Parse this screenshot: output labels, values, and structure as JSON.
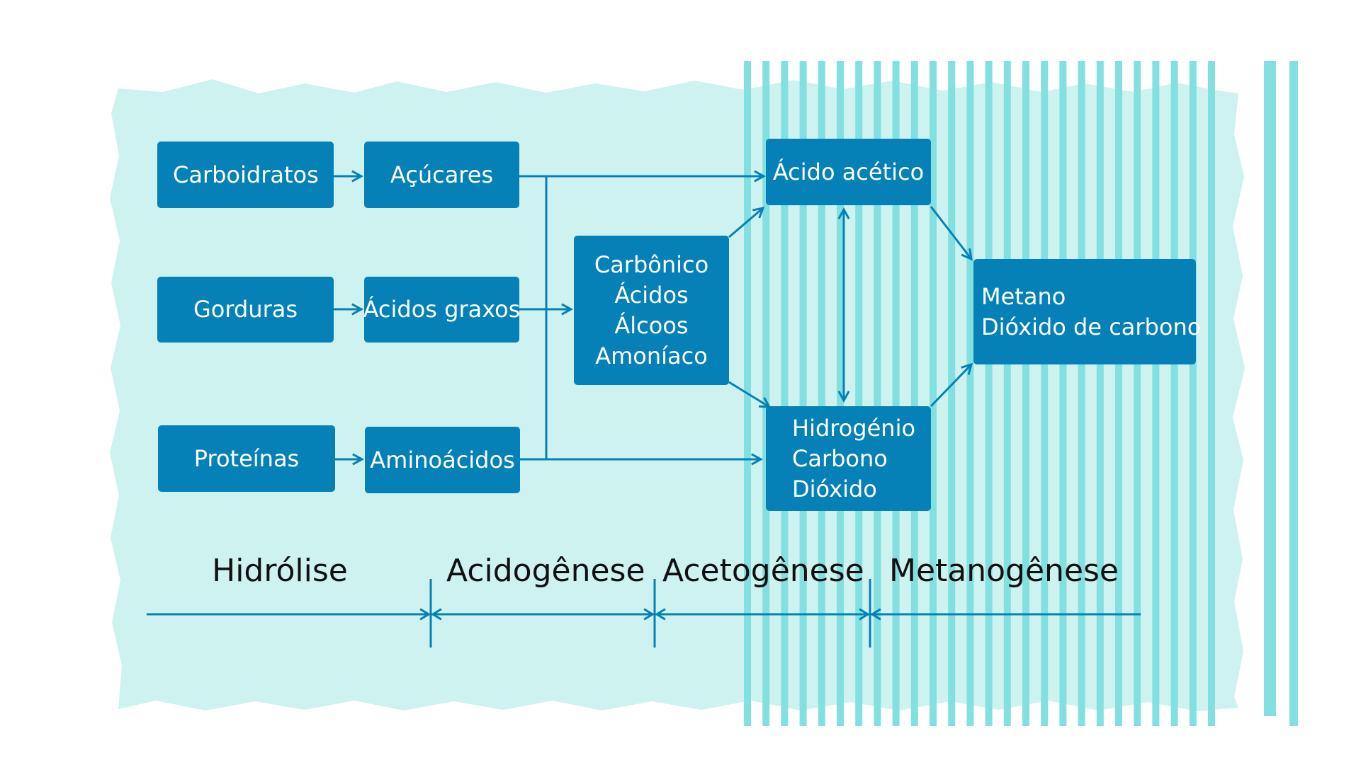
{
  "colors": {
    "background": "#ffffff",
    "panel": "#cdf2f0",
    "stripes": "#83e0e0",
    "box": "#0581b7",
    "box_text": "#ffffff",
    "arrow": "#0581b7",
    "phase_text": "#111111"
  },
  "boxes": {
    "carboidratos": "Carboidratos",
    "acucares": "Açúcares",
    "gorduras": "Gorduras",
    "acidos_graxos": "Ácidos graxos",
    "proteinas": "Proteínas",
    "aminoacidos": "Aminoácidos",
    "intermediarios": [
      "Carbônico",
      "Ácidos",
      "Álcoos",
      "Amoníaco"
    ],
    "acido_acetico": "Ácido acético",
    "hidrogenio": [
      "Hidrogénio",
      "Carbono",
      "Dióxido"
    ],
    "produtos": [
      "Metano",
      "Dióxido de carbono"
    ]
  },
  "phases": [
    "Hidrólise",
    "Acidogênese",
    "Acetogênese",
    "Metanogênese"
  ]
}
